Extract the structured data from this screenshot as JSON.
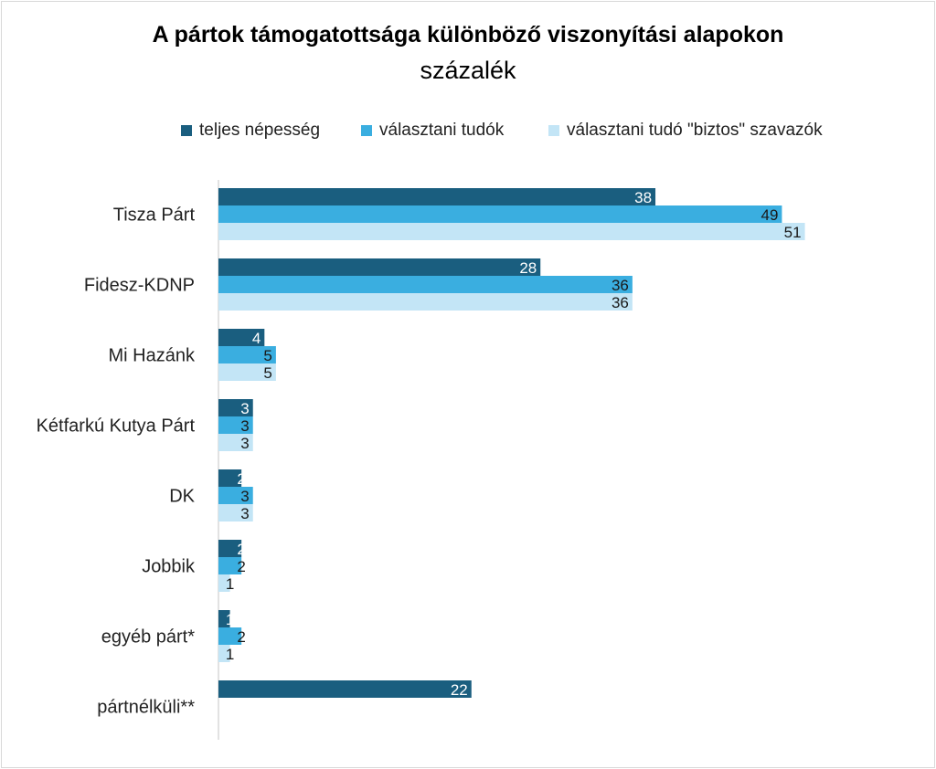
{
  "chart_data": {
    "type": "bar",
    "orientation": "horizontal",
    "title": "A pártok támogatottsága különböző viszonyítási alapokon",
    "subtitle": "százalék",
    "categories": [
      "Tisza Párt",
      "Fidesz-KDNP",
      "Mi Hazánk",
      "Kétfarkú Kutya Párt",
      "DK",
      "Jobbik",
      "egyéb párt*",
      "pártnélküli**"
    ],
    "series": [
      {
        "name": "teljes népesség",
        "color": "#1a5e7f",
        "label_color": "#ffffff",
        "values": [
          38,
          28,
          4,
          3,
          2,
          2,
          1,
          22
        ]
      },
      {
        "name": "választani tudók",
        "color": "#3aaee0",
        "label_color": "#1a1a1a",
        "values": [
          49,
          36,
          5,
          3,
          3,
          2,
          2,
          null
        ]
      },
      {
        "name": "választani tudó \"biztos\" szavazók",
        "color": "#c3e5f6",
        "label_color": "#1a1a1a",
        "values": [
          51,
          36,
          5,
          3,
          3,
          1,
          1,
          null
        ]
      }
    ],
    "xlim": [
      0,
      60
    ],
    "legend_position": "top",
    "grid": false
  }
}
